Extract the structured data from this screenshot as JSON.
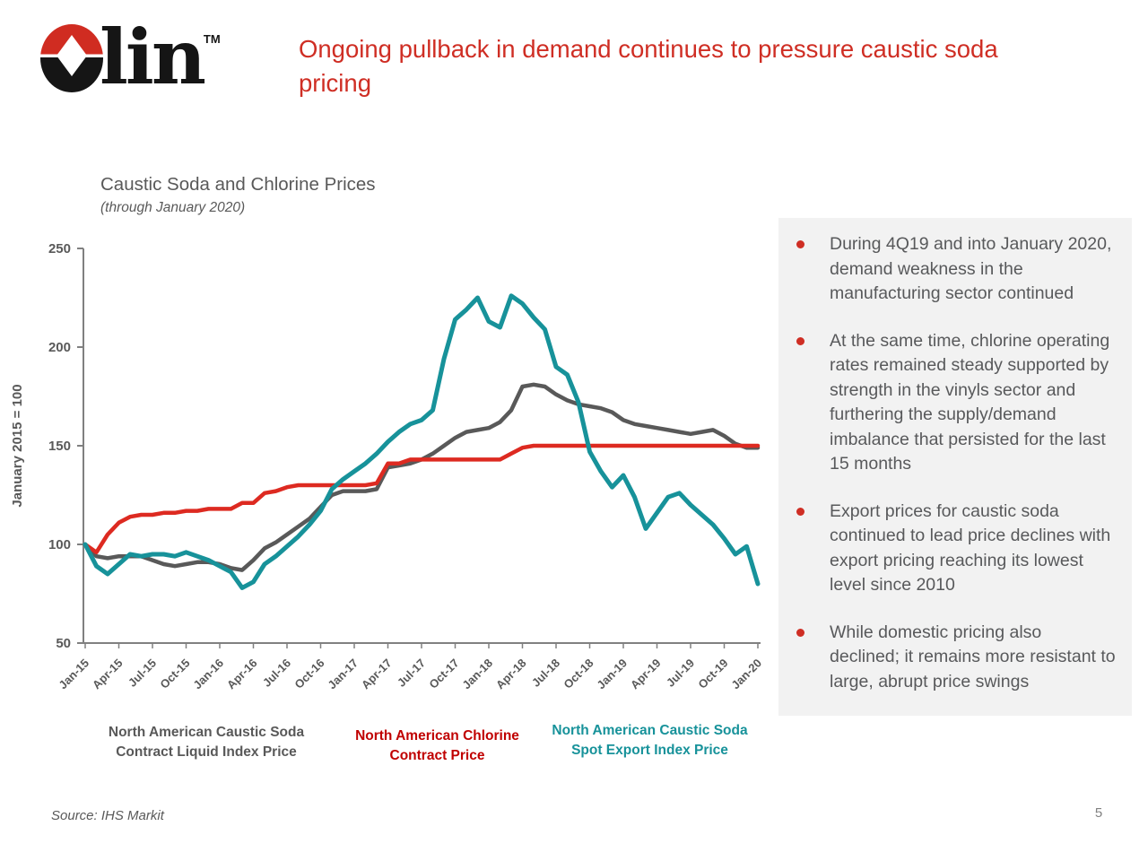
{
  "slide": {
    "title": "Ongoing pullback in demand continues to pressure caustic soda pricing",
    "logo": {
      "brand_text": "lin",
      "tm": "TM"
    },
    "source": "Source: IHS Markit",
    "page_number": "5"
  },
  "chart": {
    "heading": "Caustic Soda and Chlorine Prices",
    "subheading": "(through January 2020)",
    "y_axis_title": "January 2015 = 100"
  },
  "chart_data": {
    "type": "line",
    "title": "Caustic Soda and Chlorine Prices",
    "subtitle": "(through January 2020)",
    "ylabel": "January 2015 = 100",
    "ylim": [
      50,
      250
    ],
    "yticks": [
      50,
      100,
      150,
      200,
      250
    ],
    "grid": false,
    "legend_position": "bottom",
    "x_interval": "monthly",
    "x_range": "Jan-2015 to Jan-2020",
    "x_tick_labels": [
      "Jan-15",
      "Apr-15",
      "Jul-15",
      "Oct-15",
      "Jan-16",
      "Apr-16",
      "Jul-16",
      "Oct-16",
      "Jan-17",
      "Apr-17",
      "Jul-17",
      "Oct-17",
      "Jan-18",
      "Apr-18",
      "Jul-18",
      "Oct-18",
      "Jan-19",
      "Apr-19",
      "Jul-19",
      "Oct-19",
      "Jan-20"
    ],
    "series": [
      {
        "name": "North American Caustic Soda Contract Liquid Index Price",
        "color": "#595959",
        "values": [
          100,
          94,
          93,
          94,
          94,
          94,
          92,
          90,
          89,
          90,
          91,
          91,
          90,
          88,
          87,
          92,
          98,
          101,
          105,
          109,
          113,
          119,
          125,
          127,
          127,
          127,
          128,
          139,
          140,
          141,
          143,
          146,
          150,
          154,
          157,
          158,
          159,
          162,
          168,
          180,
          181,
          180,
          176,
          173,
          171,
          170,
          169,
          167,
          163,
          161,
          160,
          159,
          158,
          157,
          156,
          157,
          158,
          155,
          151,
          149,
          149
        ]
      },
      {
        "name": "North American Chlorine Contract Price",
        "color": "#dd2a21",
        "values": [
          100,
          96,
          105,
          111,
          114,
          115,
          115,
          116,
          116,
          117,
          117,
          118,
          118,
          118,
          121,
          121,
          126,
          127,
          129,
          130,
          130,
          130,
          130,
          130,
          130,
          130,
          131,
          141,
          141,
          143,
          143,
          143,
          143,
          143,
          143,
          143,
          143,
          143,
          146,
          149,
          150,
          150,
          150,
          150,
          150,
          150,
          150,
          150,
          150,
          150,
          150,
          150,
          150,
          150,
          150,
          150,
          150,
          150,
          150,
          150,
          150
        ]
      },
      {
        "name": "North American Caustic Soda Spot Export Index Price",
        "color": "#17929a",
        "values": [
          100,
          89,
          85,
          90,
          95,
          94,
          95,
          95,
          94,
          96,
          94,
          92,
          89,
          86,
          78,
          81,
          90,
          94,
          99,
          104,
          110,
          117,
          128,
          133,
          137,
          141,
          146,
          152,
          157,
          161,
          163,
          168,
          194,
          214,
          219,
          225,
          213,
          210,
          226,
          222,
          215,
          209,
          190,
          186,
          172,
          147,
          137,
          129,
          135,
          124,
          108,
          116,
          124,
          126,
          120,
          115,
          110,
          103,
          95,
          99,
          80
        ]
      }
    ]
  },
  "legend": {
    "items": [
      {
        "line1": "North American Caustic Soda",
        "line2": "Contract Liquid Index Price",
        "color": "#595959"
      },
      {
        "line1": "North American Chlorine",
        "line2": "Contract Price",
        "color": "#c00000"
      },
      {
        "line1": "North American Caustic Soda",
        "line2": "Spot Export Index Price",
        "color": "#17929a"
      }
    ]
  },
  "bullets": [
    {
      "text": "During 4Q19 and into January 2020, demand weakness in the manufacturing sector continued"
    },
    {
      "text": "At the same time, chlorine operating rates remained steady supported by strength in the vinyls sector and furthering the supply/demand imbalance that persisted for the last 15 months"
    },
    {
      "text": "Export prices for caustic soda continued to lead price declines with export pricing reaching its lowest level since 2010"
    },
    {
      "text": "While domestic pricing also declined; it remains more resistant to large, abrupt price swings"
    }
  ]
}
